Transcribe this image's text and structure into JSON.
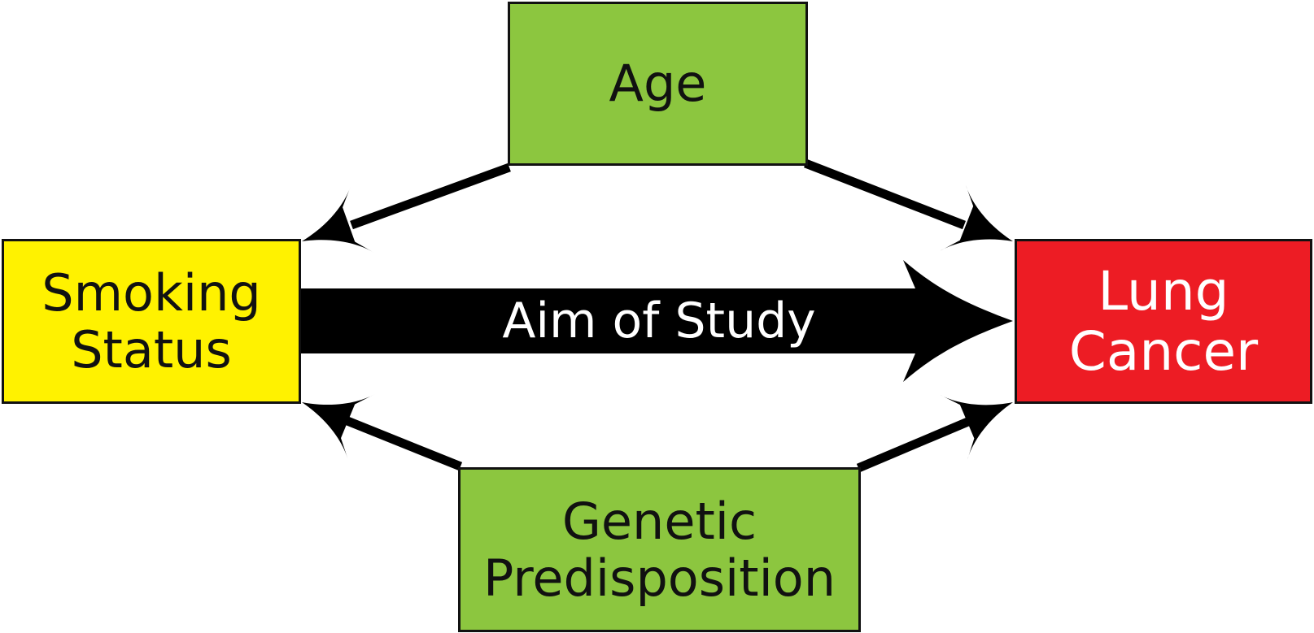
{
  "colors": {
    "confounder": "#8cc63f",
    "exposure": "#fff200",
    "outcome": "#ed1c24",
    "arrow": "#000000",
    "border": "#111111",
    "dark_text": "#111111",
    "light_text": "#ffffff"
  },
  "nodes": {
    "age": {
      "lines": [
        "Age"
      ]
    },
    "smoking": {
      "lines": [
        "Smoking",
        "Status"
      ]
    },
    "lung": {
      "lines": [
        "Lung",
        "Cancer"
      ]
    },
    "genetic": {
      "lines": [
        "Genetic",
        "Predisposition"
      ]
    }
  },
  "edges": [
    {
      "from": "age",
      "to": "smoking"
    },
    {
      "from": "age",
      "to": "lung"
    },
    {
      "from": "genetic",
      "to": "smoking"
    },
    {
      "from": "genetic",
      "to": "lung"
    },
    {
      "from": "smoking",
      "to": "lung"
    }
  ],
  "main_arrow": {
    "label": "Aim of Study"
  }
}
